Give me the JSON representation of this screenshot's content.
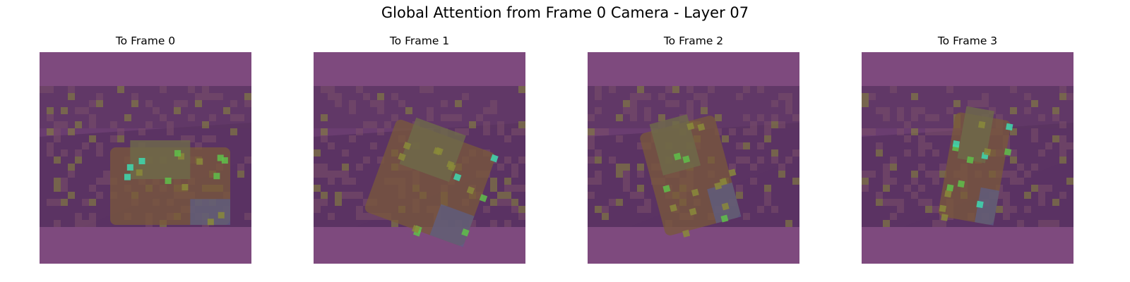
{
  "figure": {
    "title": "Global Attention from Frame 0 Camera - Layer 07"
  },
  "panels": [
    {
      "title": "To Frame 0",
      "scene": "robot-vehicle-with-plants"
    },
    {
      "title": "To Frame 1",
      "scene": "robot-vehicle-angled"
    },
    {
      "title": "To Frame 2",
      "scene": "robot-vehicle-top-view"
    },
    {
      "title": "To Frame 3",
      "scene": "robot-vehicle-far-view"
    }
  ],
  "colors": {
    "pad_band": "#7e4a7e",
    "overlay_base": "#6a3d70",
    "floor_dark": "#4f2b5a",
    "hot_low": "#8a8a3a",
    "hot_mid": "#5fbf4a",
    "hot_high": "#3ed9b0"
  }
}
